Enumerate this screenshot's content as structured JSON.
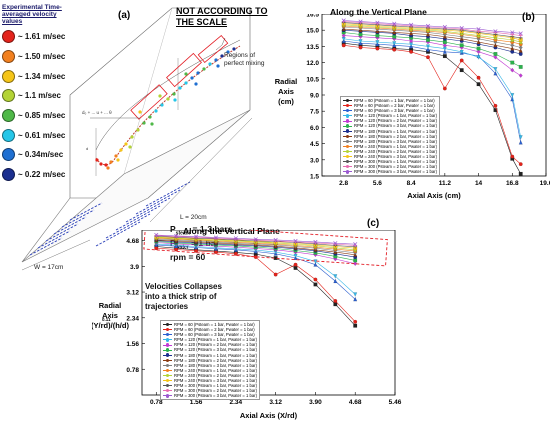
{
  "panel_a": {
    "label": "(a)",
    "note_scale": "NOT ACCORDING TO THE SCALE",
    "legend_title": "Experimental Time-averaged velocity values",
    "legend": [
      {
        "label": "~ 1.61 m/sec",
        "color": "#e3231b"
      },
      {
        "label": "~ 1.50 m/sec",
        "color": "#f2801f"
      },
      {
        "label": "~ 1.34 m/sec",
        "color": "#f5c518"
      },
      {
        "label": "~ 1.1 m/sec",
        "color": "#b3d335"
      },
      {
        "label": "~ 0.85 m/sec",
        "color": "#4fb848"
      },
      {
        "label": "~ 0.61 m/sec",
        "color": "#25c6e8"
      },
      {
        "label": "~ 0.34m/sec",
        "color": "#1f6fd1"
      },
      {
        "label": "~ 0.22 m/sec",
        "color": "#1b2f8f"
      }
    ],
    "regions_label": "Regions of perfect mixing",
    "length_label": "L = 20cm",
    "width_label": "W = 17cm",
    "p_steam": "P",
    "p_steam_sub": "steam",
    "p_steam_val": "= 1-3 bars",
    "p_water": "P",
    "p_water_sub": "water",
    "p_water_val": "= 1 bar",
    "rpm_label": "rpm",
    "rpm_val": "= 60",
    "eq_label": "d₀ + ... u + ... θ"
  },
  "chart_b": {
    "label": "(b)",
    "title": "Along the Vertical Plane",
    "xlabel": "Axial Axis (cm)",
    "ylabel": "Radial Axis (cm)",
    "ylabel_lines": [
      "Radial",
      "Axis",
      "(cm)"
    ],
    "x_ticks": [
      "2.8",
      "5.6",
      "8.4",
      "11.2",
      "14",
      "16.8",
      "19.6"
    ],
    "y_ticks": [
      "1.5",
      "3.0",
      "4.5",
      "6.0",
      "7.5",
      "9.0",
      "10.5",
      "12.0",
      "13.5",
      "15.0",
      "16.5"
    ],
    "legend": [
      "RPM = 60 (Psteam = 1 bar, Pwater = 1 bar)",
      "RPM = 60 (Psteam = 2 bar, Pwater = 1 bar)",
      "RPM = 60 (Psteam = 3 bar, Pwater = 1 bar)",
      "RPM = 120 (Psteam = 1 bar, Pwater = 1 bar)",
      "RPM = 120 (Psteam = 2 bar, Pwater = 1 bar)",
      "RPM = 120 (Psteam = 3 bar, Pwater = 1 bar)",
      "RPM = 180 (Psteam = 1 bar, Pwater = 1 bar)",
      "RPM = 180 (Psteam = 2 bar, Pwater = 1 bar)",
      "RPM = 180 (Psteam = 3 bar, Pwater = 1 bar)",
      "RPM = 240 (Psteam = 1 bar, Pwater = 1 bar)",
      "RPM = 240 (Psteam = 2 bar, Pwater = 1 bar)",
      "RPM = 240 (Psteam = 3 bar, Pwater = 1 bar)",
      "RPM = 300 (Psteam = 1 bar, Pwater = 1 bar)",
      "RPM = 300 (Psteam = 2 bar, Pwater = 1 bar)",
      "RPM = 300 (Psteam = 3 bar, Pwater = 1 bar)"
    ]
  },
  "chart_c": {
    "label": "(c)",
    "title": "Along the Vertical Plane",
    "xlabel": "Axial Axis (X/rd)",
    "ylabel_lines": [
      "Radial",
      "Axis",
      "(Y/rd)/(h/d)"
    ],
    "ylabel_exp": "0.11",
    "callout": [
      "Velocities Collapses",
      "into a thick strip of",
      "trajectories"
    ],
    "x_ticks": [
      "0.78",
      "1.56",
      "2.34",
      "3.12",
      "3.90",
      "4.68",
      "5.46"
    ],
    "y_ticks": [
      "0.78",
      "1.56",
      "2.34",
      "3.12",
      "3.9",
      "4.68"
    ],
    "legend": [
      "RPM = 60 (Psteam = 1 bar, Pwater = 1 bar)",
      "RPM = 60 (Psteam = 2 bar, Pwater = 1 bar)",
      "RPM = 60 (Psteam = 3 bar, Pwater = 1 bar)",
      "RPM = 120 (Psteam = 1 bar, Pwater = 1 bar)",
      "RPM = 120 (Psteam = 2 bar, Pwater = 1 bar)",
      "RPM = 120 (Psteam = 3 bar, Pwater = 1 bar)",
      "RPM = 180 (Psteam = 1 bar, Pwater = 1 bar)",
      "RPM = 180 (Psteam = 2 bar, Pwater = 1 bar)",
      "RPM = 180 (Psteam = 3 bar, Pwater = 1 bar)",
      "RPM = 240 (Psteam = 1 bar, Pwater = 1 bar)",
      "RPM = 240 (Psteam = 2 bar, Pwater = 1 bar)",
      "RPM = 240 (Psteam = 3 bar, Pwater = 1 bar)",
      "RPM = 300 (Psteam = 1 bar, Pwater = 1 bar)",
      "RPM = 300 (Psteam = 2 bar, Pwater = 1 bar)",
      "RPM = 300 (Psteam = 3 bar, Pwater = 1 bar)"
    ]
  },
  "chart_data": [
    {
      "type": "line",
      "title": "Along the Vertical Plane",
      "xlabel": "Axial Axis (cm)",
      "ylabel": "Radial Axis (cm)",
      "xlim": [
        1.0,
        19.6
      ],
      "ylim": [
        1.5,
        16.5
      ],
      "grid": false,
      "legend_placement": "bottom-left",
      "x": [
        2.8,
        4.2,
        5.6,
        7.0,
        8.4,
        9.8,
        11.2,
        12.6,
        14.0,
        15.4,
        16.8,
        17.5
      ],
      "series": [
        {
          "name": "RPM = 60 (Psteam = 1 bar, Pwater = 1 bar)",
          "color": "#222222",
          "values": [
            13.8,
            13.6,
            13.5,
            13.3,
            13.2,
            13.0,
            12.6,
            11.3,
            10.0,
            7.6,
            3.1,
            1.7
          ]
        },
        {
          "name": "RPM = 60 (Psteam = 2 bar, Pwater = 1 bar)",
          "color": "#e3231b",
          "values": [
            13.6,
            13.4,
            13.3,
            13.2,
            13.0,
            12.5,
            9.6,
            12.2,
            10.6,
            8.0,
            3.3,
            2.6
          ]
        },
        {
          "name": "RPM = 60 (Psteam = 3 bar, Pwater = 1 bar)",
          "color": "#2b5fcf",
          "values": [
            14.0,
            13.8,
            13.7,
            13.6,
            13.5,
            13.2,
            13.0,
            12.9,
            12.6,
            11.0,
            8.6,
            4.6
          ]
        },
        {
          "name": "RPM = 120 (Psteam = 1 bar, Pwater = 1 bar)",
          "color": "#36b7e8",
          "values": [
            14.2,
            14.0,
            13.9,
            13.8,
            13.7,
            13.5,
            13.3,
            13.0,
            12.5,
            11.4,
            9.0,
            5.1
          ]
        },
        {
          "name": "RPM = 120 (Psteam = 2 bar, Pwater = 1 bar)",
          "color": "#c23bd4",
          "values": [
            14.5,
            14.4,
            14.3,
            14.2,
            14.0,
            13.9,
            13.6,
            13.4,
            13.0,
            12.5,
            11.3,
            10.8
          ]
        },
        {
          "name": "RPM = 120 (Psteam = 3 bar, Pwater = 1 bar)",
          "color": "#2bb24c",
          "values": [
            14.8,
            14.6,
            14.5,
            14.4,
            14.3,
            14.1,
            13.9,
            13.6,
            13.3,
            12.8,
            12.0,
            11.6
          ]
        },
        {
          "name": "RPM = 180 (Psteam = 1 bar, Pwater = 1 bar)",
          "color": "#1b2f8f",
          "values": [
            15.0,
            14.9,
            14.8,
            14.7,
            14.5,
            14.4,
            14.2,
            14.0,
            13.7,
            13.4,
            13.0,
            12.8
          ]
        },
        {
          "name": "RPM = 180 (Psteam = 2 bar, Pwater = 1 bar)",
          "color": "#8a3b12",
          "values": [
            15.1,
            15.0,
            14.9,
            14.8,
            14.7,
            14.6,
            14.4,
            14.2,
            13.9,
            13.6,
            13.3,
            13.1
          ]
        },
        {
          "name": "RPM = 180 (Psteam = 3 bar, Pwater = 1 bar)",
          "color": "#7f7f7f",
          "values": [
            15.3,
            15.2,
            15.1,
            15.0,
            14.9,
            14.8,
            14.6,
            14.4,
            14.2,
            13.9,
            13.6,
            13.4
          ]
        },
        {
          "name": "RPM = 240 (Psteam = 1 bar, Pwater = 1 bar)",
          "color": "#f2801f",
          "values": [
            15.4,
            15.3,
            15.2,
            15.1,
            15.0,
            14.9,
            14.8,
            14.6,
            14.4,
            14.1,
            13.9,
            13.7
          ]
        },
        {
          "name": "RPM = 240 (Psteam = 2 bar, Pwater = 1 bar)",
          "color": "#b3d335",
          "values": [
            15.5,
            15.4,
            15.3,
            15.2,
            15.1,
            15.0,
            14.9,
            14.7,
            14.5,
            14.3,
            14.1,
            13.9
          ]
        },
        {
          "name": "RPM = 240 (Psteam = 3 bar, Pwater = 1 bar)",
          "color": "#f5c518",
          "values": [
            15.6,
            15.5,
            15.4,
            15.3,
            15.2,
            15.1,
            15.0,
            14.9,
            14.7,
            14.5,
            14.3,
            14.1
          ]
        },
        {
          "name": "RPM = 300 (Psteam = 1 bar, Pwater = 1 bar)",
          "color": "#555555",
          "values": [
            15.7,
            15.6,
            15.5,
            15.4,
            15.3,
            15.2,
            15.1,
            15.0,
            14.8,
            14.6,
            14.4,
            14.3
          ]
        },
        {
          "name": "RPM = 300 (Psteam = 2 bar, Pwater = 1 bar)",
          "color": "#e86ab0",
          "values": [
            15.8,
            15.7,
            15.6,
            15.5,
            15.4,
            15.3,
            15.2,
            15.1,
            14.9,
            14.8,
            14.6,
            14.5
          ]
        },
        {
          "name": "RPM = 300 (Psteam = 3 bar, Pwater = 1 bar)",
          "color": "#9b59d0",
          "values": [
            15.9,
            15.8,
            15.7,
            15.6,
            15.5,
            15.4,
            15.3,
            15.2,
            15.1,
            14.9,
            14.8,
            14.7
          ]
        }
      ]
    },
    {
      "type": "line",
      "title": "Along the Vertical Plane",
      "xlabel": "Axial Axis (X/rd)",
      "ylabel": "Radial Axis (Y/rd)/(h/d)^0.11",
      "xlim": [
        0.5,
        5.46
      ],
      "ylim": [
        0.0,
        5.0
      ],
      "grid": false,
      "legend_placement": "bottom-left",
      "x": [
        0.78,
        1.17,
        1.56,
        1.95,
        2.34,
        2.73,
        3.12,
        3.51,
        3.9,
        4.29,
        4.68
      ],
      "series": [
        {
          "name": "RPM = 60 (Psteam = 1 bar, Pwater = 1 bar)",
          "color": "#222222",
          "values": [
            4.5,
            4.45,
            4.4,
            4.36,
            4.32,
            4.27,
            4.15,
            3.85,
            3.35,
            2.75,
            2.1
          ]
        },
        {
          "name": "RPM = 60 (Psteam = 2 bar, Pwater = 1 bar)",
          "color": "#e3231b",
          "values": [
            4.45,
            4.41,
            4.37,
            4.33,
            4.28,
            4.18,
            3.65,
            3.95,
            3.5,
            2.85,
            2.22
          ]
        },
        {
          "name": "RPM = 60 (Psteam = 3 bar, Pwater = 1 bar)",
          "color": "#2b5fcf",
          "values": [
            4.55,
            4.51,
            4.47,
            4.43,
            4.4,
            4.35,
            4.28,
            4.15,
            3.95,
            3.45,
            2.9
          ]
        },
        {
          "name": "RPM = 120 (Psteam = 1 bar, Pwater = 1 bar)",
          "color": "#36b7e8",
          "values": [
            4.58,
            4.54,
            4.5,
            4.46,
            4.43,
            4.39,
            4.33,
            4.22,
            4.05,
            3.6,
            3.05
          ]
        },
        {
          "name": "RPM = 120 (Psteam = 2 bar, Pwater = 1 bar)",
          "color": "#c23bd4",
          "values": [
            4.62,
            4.58,
            4.55,
            4.51,
            4.48,
            4.44,
            4.4,
            4.33,
            4.25,
            4.12,
            3.98
          ]
        },
        {
          "name": "RPM = 120 (Psteam = 3 bar, Pwater = 1 bar)",
          "color": "#2bb24c",
          "values": [
            4.65,
            4.61,
            4.58,
            4.55,
            4.52,
            4.48,
            4.44,
            4.38,
            4.31,
            4.2,
            4.08
          ]
        },
        {
          "name": "RPM = 180 (Psteam = 1 bar, Pwater = 1 bar)",
          "color": "#1b2f8f",
          "values": [
            4.68,
            4.64,
            4.61,
            4.58,
            4.55,
            4.52,
            4.48,
            4.43,
            4.37,
            4.28,
            4.18
          ]
        },
        {
          "name": "RPM = 180 (Psteam = 2 bar, Pwater = 1 bar)",
          "color": "#8a3b12",
          "values": [
            4.7,
            4.67,
            4.64,
            4.61,
            4.58,
            4.55,
            4.51,
            4.46,
            4.4,
            4.33,
            4.25
          ]
        },
        {
          "name": "RPM = 180 (Psteam = 3 bar, Pwater = 1 bar)",
          "color": "#7f7f7f",
          "values": [
            4.73,
            4.7,
            4.67,
            4.64,
            4.61,
            4.58,
            4.55,
            4.5,
            4.45,
            4.38,
            4.31
          ]
        },
        {
          "name": "RPM = 240 (Psteam = 1 bar, Pwater = 1 bar)",
          "color": "#f2801f",
          "values": [
            4.75,
            4.72,
            4.69,
            4.66,
            4.63,
            4.6,
            4.57,
            4.53,
            4.48,
            4.42,
            4.36
          ]
        },
        {
          "name": "RPM = 240 (Psteam = 2 bar, Pwater = 1 bar)",
          "color": "#b3d335",
          "values": [
            4.77,
            4.74,
            4.71,
            4.68,
            4.66,
            4.63,
            4.6,
            4.56,
            4.52,
            4.46,
            4.4
          ]
        },
        {
          "name": "RPM = 240 (Psteam = 3 bar, Pwater = 1 bar)",
          "color": "#f5c518",
          "values": [
            4.79,
            4.76,
            4.73,
            4.71,
            4.68,
            4.65,
            4.62,
            4.59,
            4.55,
            4.5,
            4.45
          ]
        },
        {
          "name": "RPM = 300 (Psteam = 1 bar, Pwater = 1 bar)",
          "color": "#555555",
          "values": [
            4.81,
            4.78,
            4.75,
            4.73,
            4.7,
            4.67,
            4.65,
            4.62,
            4.58,
            4.53,
            4.49
          ]
        },
        {
          "name": "RPM = 300 (Psteam = 2 bar, Pwater = 1 bar)",
          "color": "#e86ab0",
          "values": [
            4.83,
            4.8,
            4.78,
            4.75,
            4.72,
            4.7,
            4.67,
            4.64,
            4.61,
            4.57,
            4.53
          ]
        },
        {
          "name": "RPM = 300 (Psteam = 3 bar, Pwater = 1 bar)",
          "color": "#9b59d0",
          "values": [
            4.85,
            4.82,
            4.8,
            4.77,
            4.75,
            4.72,
            4.7,
            4.67,
            4.64,
            4.6,
            4.57
          ]
        }
      ]
    }
  ]
}
